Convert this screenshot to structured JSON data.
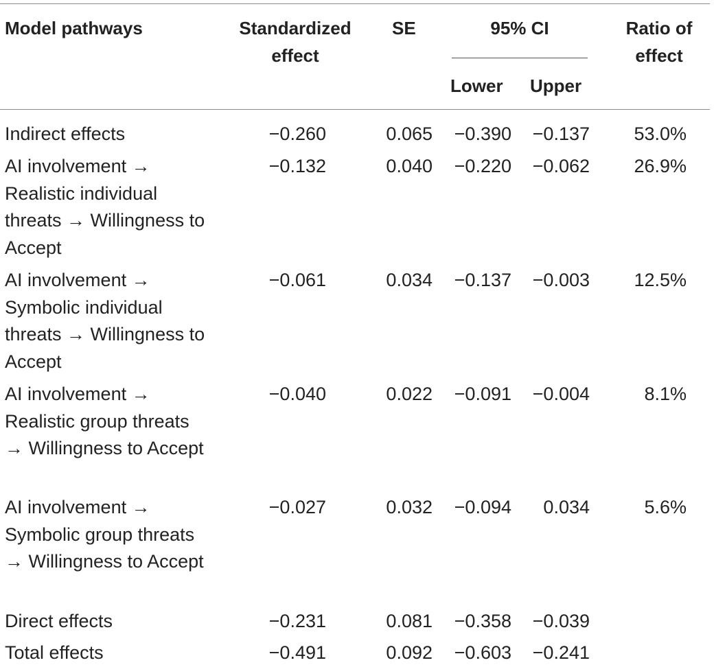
{
  "table": {
    "headers": {
      "pathway": "Model pathways",
      "std_effect": "Standardized effect",
      "se": "SE",
      "ci": "95% CI",
      "ci_lower": "Lower",
      "ci_upper": "Upper",
      "ratio": "Ratio of effect"
    },
    "rows": [
      {
        "pathway": "Indirect effects",
        "std": "−0.260",
        "se": "0.065",
        "lower": "−0.390",
        "upper": "−0.137",
        "ratio": "53.0%"
      },
      {
        "pathway": "AI involvement → Realistic individual threats → Willingness to Accept",
        "std": "−0.132",
        "se": "0.040",
        "lower": "−0.220",
        "upper": "−0.062",
        "ratio": "26.9%"
      },
      {
        "pathway": "AI involvement → Symbolic individual threats → Willingness to Accept",
        "std": "−0.061",
        "se": "0.034",
        "lower": "−0.137",
        "upper": "−0.003",
        "ratio": "12.5%"
      },
      {
        "pathway": "AI involvement → Realistic group threats → Willingness to Accept",
        "std": "−0.040",
        "se": "0.022",
        "lower": "−0.091",
        "upper": "−0.004",
        "ratio": "8.1%"
      },
      {
        "pathway": "AI involvement → Symbolic group threats → Willingness to Accept",
        "std": "−0.027",
        "se": "0.032",
        "lower": "−0.094",
        "upper": "0.034",
        "ratio": "5.6%"
      },
      {
        "pathway": "Direct effects",
        "std": "−0.231",
        "se": "0.081",
        "lower": "−0.358",
        "upper": "−0.039",
        "ratio": ""
      },
      {
        "pathway": "Total effects",
        "std": "−0.491",
        "se": "0.092",
        "lower": "−0.603",
        "upper": "−0.241",
        "ratio": ""
      }
    ]
  }
}
